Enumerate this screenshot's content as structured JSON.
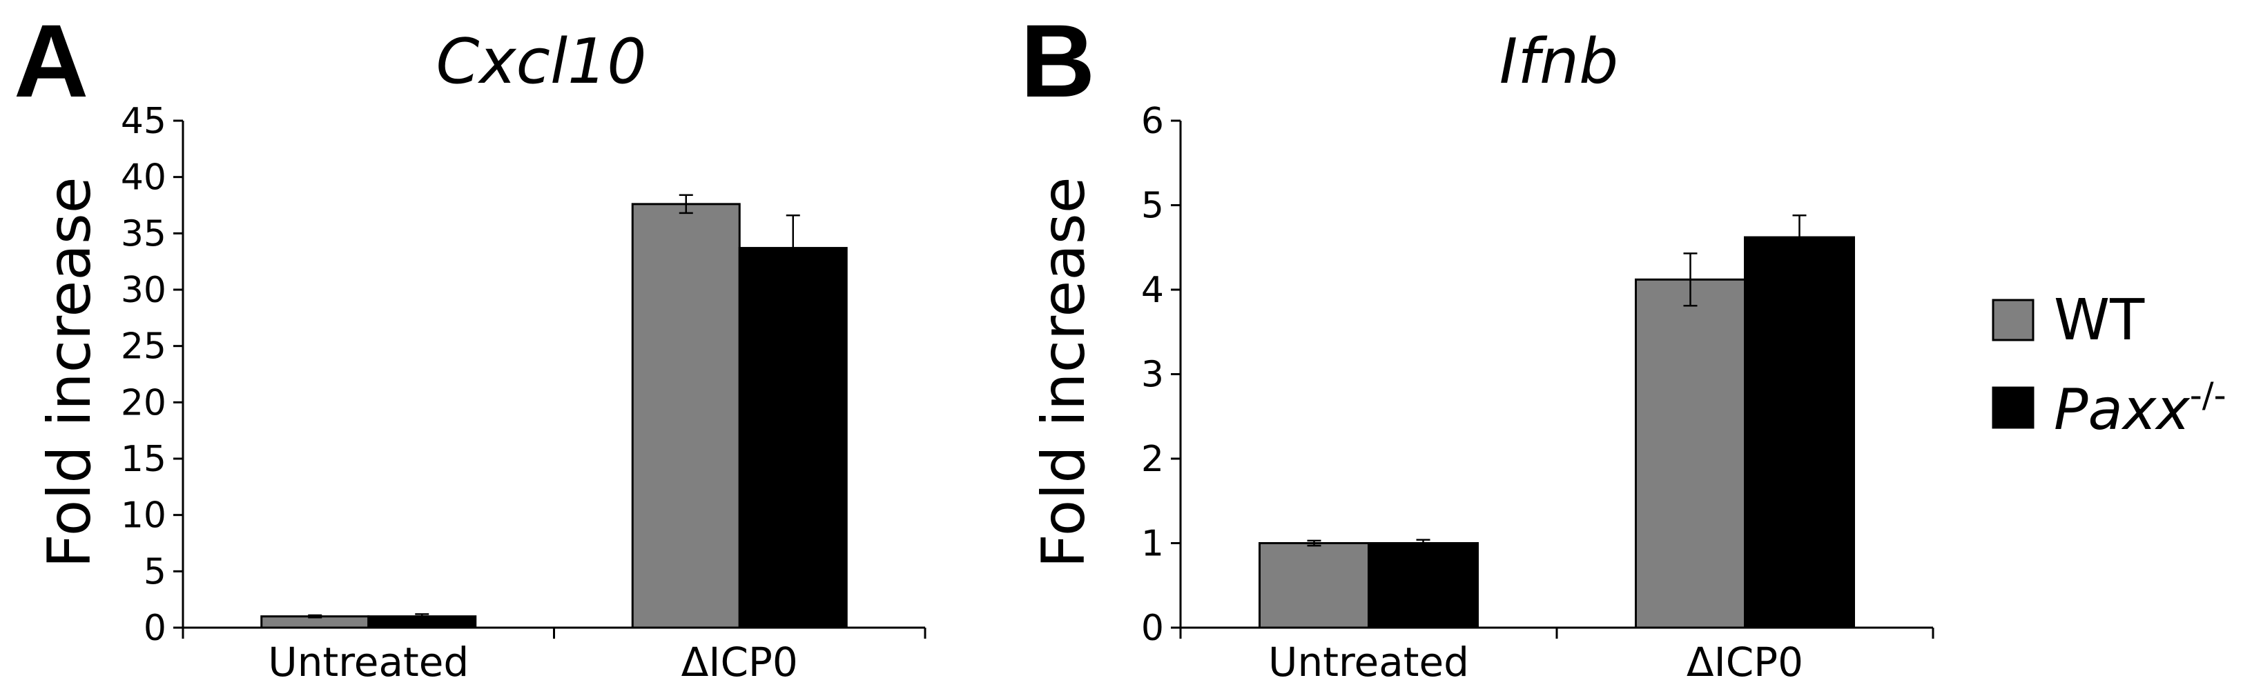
{
  "legend": {
    "items": [
      {
        "label": "WT",
        "superscript": "",
        "italic": false,
        "color": "#808080"
      },
      {
        "label": "Paxx",
        "superscript": "-/-",
        "italic": true,
        "color": "#000000"
      }
    ],
    "placement": "right"
  },
  "chart_data": [
    {
      "panel": "A",
      "type": "bar",
      "title": "Cxcl10",
      "ylabel": "Fold increase",
      "xlabel": "",
      "categories": [
        "Untreated",
        "ΔICP0"
      ],
      "ylim": [
        0,
        45
      ],
      "yticks": [
        0,
        5,
        10,
        15,
        20,
        25,
        30,
        35,
        40,
        45
      ],
      "grid": false,
      "series": [
        {
          "name": "WT",
          "color": "#808080",
          "values": [
            1.0,
            37.6
          ],
          "errors": [
            0.1,
            0.8
          ]
        },
        {
          "name": "Paxx-/-",
          "color": "#000000",
          "values": [
            1.0,
            33.7
          ],
          "errors": [
            0.2,
            2.9
          ]
        }
      ]
    },
    {
      "panel": "B",
      "type": "bar",
      "title": "Ifnb",
      "ylabel": "Fold increase",
      "xlabel": "",
      "categories": [
        "Untreated",
        "ΔICP0"
      ],
      "ylim": [
        0,
        6
      ],
      "yticks": [
        0,
        1,
        2,
        3,
        4,
        5,
        6
      ],
      "grid": false,
      "series": [
        {
          "name": "WT",
          "color": "#808080",
          "values": [
            1.0,
            4.12
          ],
          "errors": [
            0.03,
            0.31
          ]
        },
        {
          "name": "Paxx-/-",
          "color": "#000000",
          "values": [
            1.0,
            4.62
          ],
          "errors": [
            0.04,
            0.26
          ]
        }
      ]
    }
  ]
}
